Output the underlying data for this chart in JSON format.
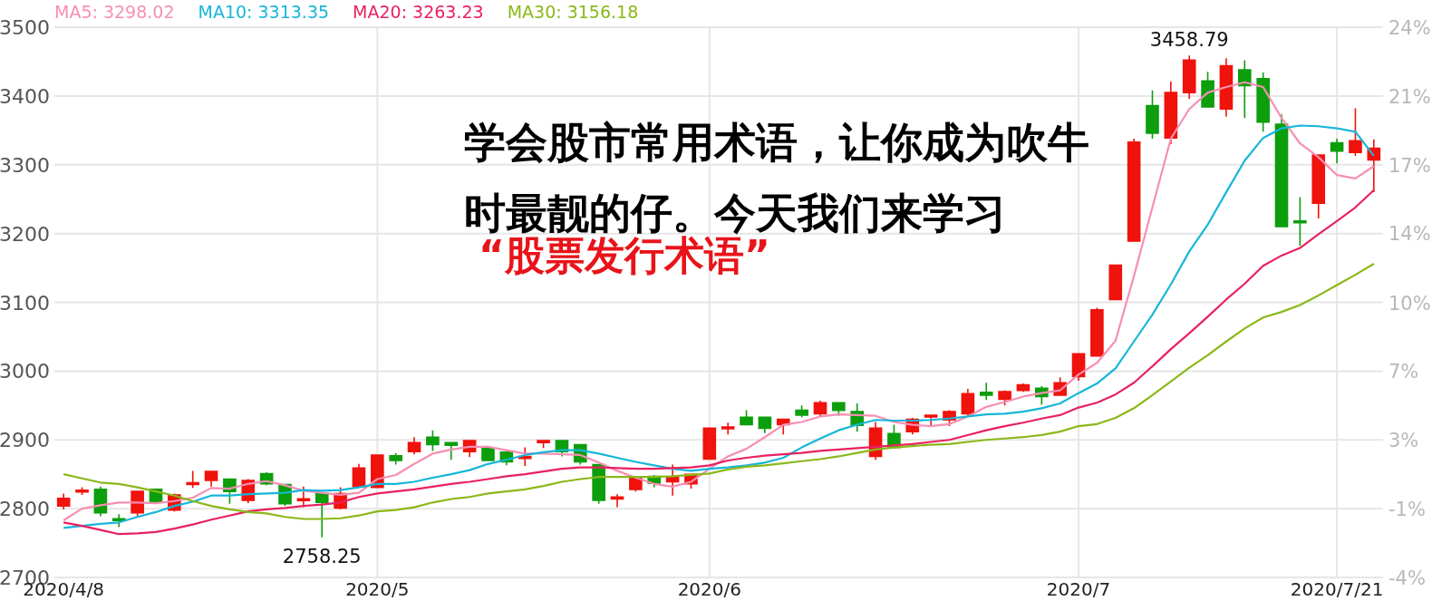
{
  "chart_data": {
    "type": "candlestick",
    "categories": [
      "2020/4/8",
      null,
      null,
      null,
      null,
      null,
      null,
      null,
      null,
      null,
      null,
      null,
      null,
      null,
      null,
      null,
      null,
      "2020/5",
      null,
      null,
      null,
      null,
      null,
      null,
      null,
      null,
      null,
      null,
      null,
      null,
      null,
      null,
      null,
      null,
      null,
      "2020/6",
      null,
      null,
      null,
      null,
      null,
      null,
      null,
      null,
      null,
      null,
      null,
      null,
      null,
      null,
      null,
      null,
      null,
      null,
      null,
      "2020/7",
      null,
      null,
      null,
      null,
      null,
      null,
      null,
      null,
      null,
      null,
      null,
      null,
      null,
      "2020/7/21",
      null,
      null
    ],
    "ohlc": [
      [
        2804,
        2822,
        2799,
        2815
      ],
      [
        2825,
        2831,
        2820,
        2826
      ],
      [
        2828,
        2832,
        2789,
        2794
      ],
      [
        2785,
        2792,
        2773,
        2783
      ],
      [
        2794,
        2826,
        2789,
        2825
      ],
      [
        2828,
        2829,
        2808,
        2809
      ],
      [
        2798,
        2822,
        2796,
        2820
      ],
      [
        2836,
        2855,
        2830,
        2837
      ],
      [
        2841,
        2854,
        2832,
        2854
      ],
      [
        2843,
        2843,
        2807,
        2825
      ],
      [
        2812,
        2843,
        2808,
        2841
      ],
      [
        2851,
        2853,
        2834,
        2836
      ],
      [
        2835,
        2835,
        2804,
        2807
      ],
      [
        2812,
        2832,
        2802,
        2814
      ],
      [
        2822,
        2822,
        2758.25,
        2809
      ],
      [
        2801,
        2831,
        2799,
        2822
      ],
      [
        2832,
        2865,
        2830,
        2859
      ],
      [
        2831,
        2879,
        2831,
        2878
      ],
      [
        2877,
        2881,
        2864,
        2870
      ],
      [
        2883,
        2904,
        2879,
        2896
      ],
      [
        2904,
        2914,
        2884,
        2893
      ],
      [
        2896,
        2897,
        2871,
        2892
      ],
      [
        2883,
        2900,
        2875,
        2899
      ],
      [
        2888,
        2888,
        2870,
        2870
      ],
      [
        2882,
        2882,
        2863,
        2868
      ],
      [
        2874,
        2889,
        2862,
        2875
      ],
      [
        2897,
        2900,
        2888,
        2898
      ],
      [
        2899,
        2899,
        2876,
        2883
      ],
      [
        2893,
        2893,
        2864,
        2868
      ],
      [
        2864,
        2865,
        2807,
        2812
      ],
      [
        2815,
        2821,
        2802,
        2816
      ],
      [
        2828,
        2847,
        2825,
        2845
      ],
      [
        2847,
        2849,
        2831,
        2837
      ],
      [
        2839,
        2864,
        2819,
        2846
      ],
      [
        2836,
        2850,
        2829,
        2850
      ],
      [
        2872,
        2917,
        2871,
        2917
      ],
      [
        2917,
        2925,
        2908,
        2918
      ],
      [
        2933,
        2943,
        2921,
        2922
      ],
      [
        2933,
        2933,
        2910,
        2917
      ],
      [
        2922,
        2930,
        2908,
        2930
      ],
      [
        2943,
        2950,
        2933,
        2936
      ],
      [
        2938,
        2957,
        2934,
        2954
      ],
      [
        2954,
        2954,
        2935,
        2943
      ],
      [
        2941,
        2953,
        2912,
        2921
      ],
      [
        2876,
        2926,
        2871,
        2917
      ],
      [
        2909,
        2922,
        2887,
        2889
      ],
      [
        2912,
        2932,
        2908,
        2930
      ],
      [
        2934,
        2936,
        2920,
        2935
      ],
      [
        2929,
        2943,
        2920,
        2941
      ],
      [
        2938,
        2974,
        2936,
        2967
      ],
      [
        2969,
        2983,
        2958,
        2965
      ],
      [
        2959,
        2972,
        2950,
        2970
      ],
      [
        2972,
        2982,
        2970,
        2980
      ],
      [
        2975,
        2978,
        2951,
        2963
      ],
      [
        2965,
        2991,
        2964,
        2983
      ],
      [
        2992,
        3026,
        2986,
        3025
      ],
      [
        3022,
        3092,
        3022,
        3089
      ],
      [
        3104,
        3154,
        3104,
        3154
      ],
      [
        3189,
        3338,
        3189,
        3333
      ],
      [
        3386,
        3408,
        3338,
        3346
      ],
      [
        3339,
        3421,
        3330,
        3405
      ],
      [
        3405,
        3458.79,
        3396,
        3452
      ],
      [
        3422,
        3435,
        3383,
        3384
      ],
      [
        3381,
        3455,
        3370,
        3444
      ],
      [
        3438,
        3452,
        3368,
        3415
      ],
      [
        3425,
        3434,
        3348,
        3362
      ],
      [
        3359,
        3373,
        3210,
        3210
      ],
      [
        3218,
        3253,
        3182,
        3216
      ],
      [
        3244,
        3314,
        3222,
        3314
      ],
      [
        3332,
        3338,
        3302,
        3320
      ],
      [
        3318,
        3382,
        3313,
        3335
      ],
      [
        3307,
        3337,
        3260,
        3324
      ]
    ],
    "colors": [
      "#f0120c",
      "#f0120c",
      "#0c9e0c",
      "#0c9e0c",
      "#f0120c",
      "#0c9e0c",
      "#f0120c",
      "#f0120c",
      "#f0120c",
      "#0c9e0c",
      "#f0120c",
      "#0c9e0c",
      "#0c9e0c",
      "#f0120c",
      "#0c9e0c",
      "#f0120c",
      "#f0120c",
      "#f0120c",
      "#0c9e0c",
      "#f0120c",
      "#0c9e0c",
      "#0c9e0c",
      "#f0120c",
      "#0c9e0c",
      "#0c9e0c",
      "#f0120c",
      "#f0120c",
      "#0c9e0c",
      "#0c9e0c",
      "#0c9e0c",
      "#f0120c",
      "#f0120c",
      "#0c9e0c",
      "#f0120c",
      "#f0120c",
      "#f0120c",
      "#f0120c",
      "#0c9e0c",
      "#0c9e0c",
      "#f0120c",
      "#0c9e0c",
      "#f0120c",
      "#0c9e0c",
      "#0c9e0c",
      "#f0120c",
      "#0c9e0c",
      "#f0120c",
      "#f0120c",
      "#f0120c",
      "#f0120c",
      "#0c9e0c",
      "#f0120c",
      "#f0120c",
      "#0c9e0c",
      "#f0120c",
      "#f0120c",
      "#f0120c",
      "#f0120c",
      "#f0120c",
      "#0c9e0c",
      "#f0120c",
      "#f0120c",
      "#0c9e0c",
      "#f0120c",
      "#0c9e0c",
      "#0c9e0c",
      "#0c9e0c",
      "#0c9e0c",
      "#f0120c",
      "#0c9e0c",
      "#f0120c",
      "#f0120c"
    ],
    "series": [
      {
        "name": "MA5: 3298.02",
        "type": "line",
        "color": "#f78fb3",
        "values": [
          2783,
          2800,
          2805,
          2809,
          2809,
          2808,
          2811,
          2816,
          2830,
          2829,
          2836,
          2840,
          2834,
          2826,
          2823,
          2820,
          2823,
          2843,
          2849,
          2865,
          2880,
          2886,
          2890,
          2890,
          2885,
          2880,
          2880,
          2879,
          2878,
          2867,
          2855,
          2845,
          2836,
          2832,
          2839,
          2858,
          2876,
          2887,
          2904,
          2922,
          2926,
          2934,
          2937,
          2936,
          2935,
          2926,
          2922,
          2920,
          2923,
          2934,
          2948,
          2955,
          2963,
          2968,
          2972,
          2995,
          3012,
          3044,
          3138,
          3238,
          3338,
          3381,
          3405,
          3413,
          3420,
          3413,
          3368,
          3331,
          3311,
          3285,
          3280,
          3298
        ]
      },
      {
        "name": "MA10: 3313.35",
        "type": "line",
        "color": "#16b6d9",
        "values": [
          2772,
          2775,
          2778,
          2780,
          2788,
          2795,
          2804,
          2810,
          2819,
          2819,
          2821,
          2822,
          2823,
          2827,
          2826,
          2827,
          2831,
          2836,
          2836,
          2839,
          2845,
          2850,
          2856,
          2865,
          2871,
          2878,
          2882,
          2885,
          2885,
          2880,
          2874,
          2868,
          2863,
          2858,
          2855,
          2858,
          2860,
          2863,
          2867,
          2874,
          2889,
          2902,
          2914,
          2922,
          2929,
          2928,
          2928,
          2929,
          2931,
          2934,
          2937,
          2938,
          2941,
          2946,
          2953,
          2968,
          2982,
          3004,
          3043,
          3082,
          3126,
          3174,
          3213,
          3260,
          3306,
          3339,
          3353,
          3357,
          3356,
          3353,
          3348,
          3313
        ]
      },
      {
        "name": "MA20: 3263.23",
        "type": "line",
        "color": "#e9215f",
        "values": [
          2780,
          2775,
          2769,
          2763,
          2764,
          2766,
          2771,
          2777,
          2784,
          2790,
          2796,
          2799,
          2801,
          2804,
          2806,
          2809,
          2817,
          2822,
          2825,
          2828,
          2832,
          2836,
          2839,
          2843,
          2847,
          2850,
          2854,
          2858,
          2860,
          2860,
          2859,
          2858,
          2858,
          2859,
          2860,
          2863,
          2870,
          2874,
          2877,
          2879,
          2881,
          2884,
          2886,
          2888,
          2890,
          2892,
          2894,
          2897,
          2900,
          2907,
          2914,
          2920,
          2925,
          2931,
          2936,
          2947,
          2954,
          2966,
          2983,
          3007,
          3032,
          3055,
          3079,
          3104,
          3127,
          3153,
          3168,
          3179,
          3199,
          3218,
          3238,
          3263
        ]
      },
      {
        "name": "MA30: 3156.18",
        "type": "line",
        "color": "#8bb81a",
        "values": [
          2850,
          2844,
          2838,
          2836,
          2831,
          2825,
          2819,
          2811,
          2804,
          2799,
          2795,
          2793,
          2788,
          2785,
          2785,
          2786,
          2790,
          2796,
          2798,
          2802,
          2809,
          2814,
          2817,
          2822,
          2825,
          2828,
          2833,
          2839,
          2843,
          2846,
          2846,
          2846,
          2846,
          2847,
          2849,
          2851,
          2857,
          2861,
          2863,
          2866,
          2869,
          2872,
          2876,
          2881,
          2886,
          2889,
          2891,
          2893,
          2894,
          2897,
          2900,
          2902,
          2904,
          2907,
          2912,
          2920,
          2923,
          2932,
          2946,
          2965,
          2985,
          3005,
          3023,
          3043,
          3062,
          3078,
          3086,
          3096,
          3110,
          3125,
          3140,
          3156
        ]
      }
    ],
    "ylim": [
      2700,
      3500
    ],
    "yticks": [
      2700,
      2800,
      2900,
      3000,
      3100,
      3200,
      3300,
      3400,
      3500
    ],
    "y2lim": [
      -4.09,
      24.33
    ],
    "y2ticks": [
      {
        "value": -4.09,
        "label": "-4%"
      },
      {
        "value": -0.53,
        "label": "-1%"
      },
      {
        "value": 3.02,
        "label": "3%"
      },
      {
        "value": 6.57,
        "label": "7%"
      },
      {
        "value": 10.12,
        "label": "10%"
      },
      {
        "value": 13.68,
        "label": "14%"
      },
      {
        "value": 17.23,
        "label": "17%"
      },
      {
        "value": 20.78,
        "label": "21%"
      },
      {
        "value": 24.33,
        "label": "24%"
      }
    ],
    "grid": true,
    "legend": "top left",
    "annotations": [
      {
        "text": "3458.79",
        "y": 3458.79
      },
      {
        "text": "2758.25",
        "y": 2758.25
      },
      "学会股市常用术语，让你成为吹牛时最靓的仔。今天我们来学习",
      "“股票发行术语”"
    ]
  }
}
